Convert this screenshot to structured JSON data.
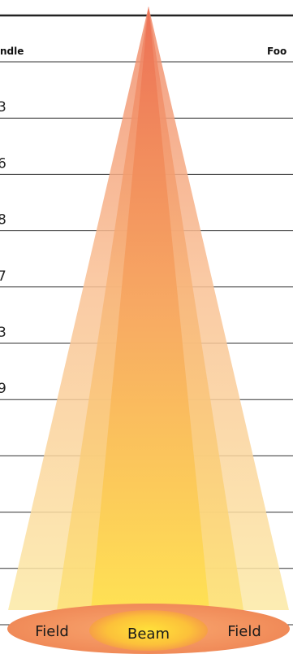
{
  "headers": {
    "left": "ndle",
    "right": "Foo"
  },
  "rows": [
    {
      "left_value": "3"
    },
    {
      "left_value": "6"
    },
    {
      "left_value": "8"
    },
    {
      "left_value": "7"
    },
    {
      "left_value": "3"
    },
    {
      "left_value": "9"
    },
    {
      "left_value": ""
    },
    {
      "left_value": ""
    },
    {
      "left_value": ""
    },
    {
      "left_value": ""
    }
  ],
  "ellipse_labels": {
    "field_left": "Field",
    "beam": "Beam",
    "field_right": "Field"
  },
  "colors": {
    "rule": "#222222",
    "row_line": "#333333",
    "label_text": "#1a1a1a"
  }
}
